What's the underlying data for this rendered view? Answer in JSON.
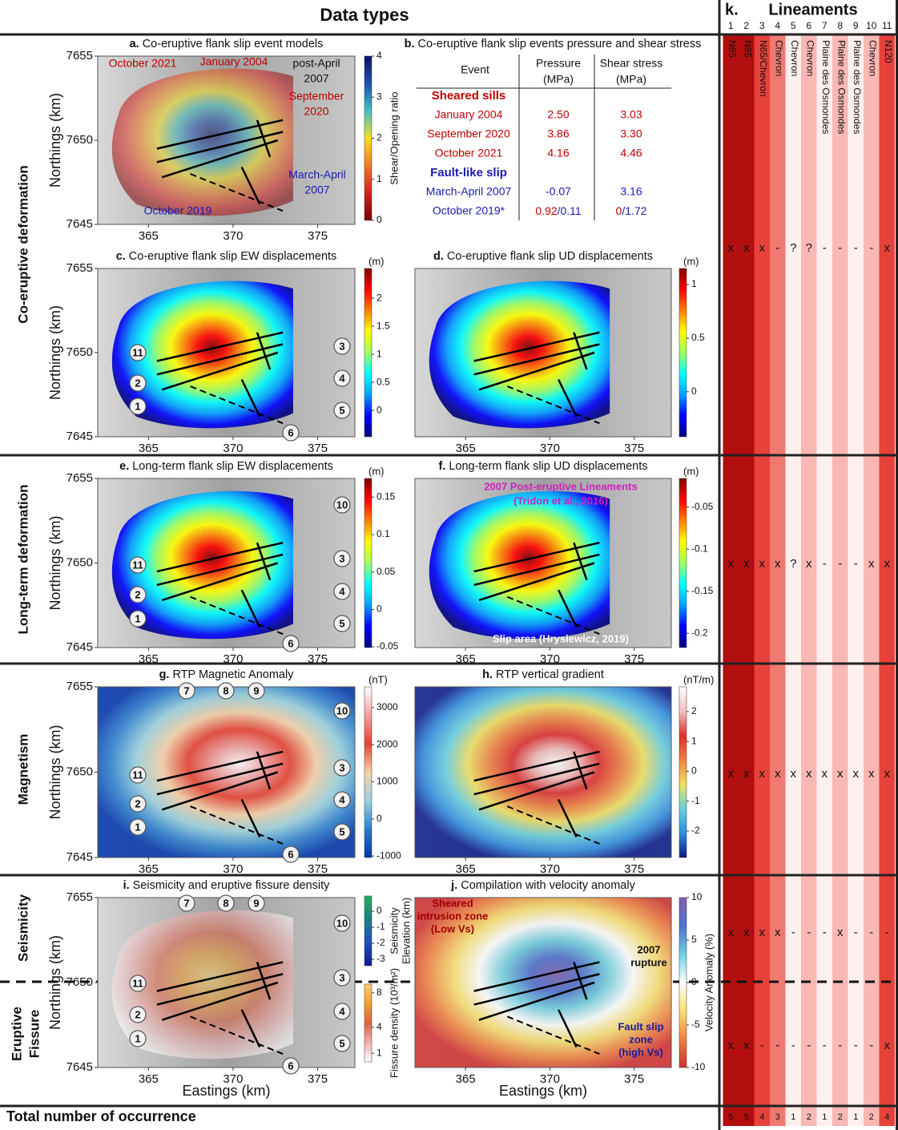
{
  "header": {
    "title": "Data types"
  },
  "sections": [
    {
      "lines": [
        "Co-eruptive deformation"
      ]
    },
    {
      "lines": [
        "Long-term deformation"
      ]
    },
    {
      "lines": [
        "Magnetism"
      ]
    },
    {
      "lines": [
        "Seismicity"
      ]
    },
    {
      "lines": [
        "Eruptive",
        "Fissure"
      ]
    }
  ],
  "axes": {
    "xlabel": "Eastings (km)",
    "ylabel": "Northings (km)",
    "xlim": [
      362,
      377.2
    ],
    "ylim": [
      7645,
      7655
    ],
    "xticks": [
      365,
      370,
      375
    ],
    "yticks": [
      7645,
      7650,
      7655
    ]
  },
  "panels": [
    {
      "letter": "a.",
      "title": "Co-eruptive flank slip event models",
      "colorbars": [
        {
          "label": [
            "Shear/Opening ratio"
          ],
          "lim": [
            0,
            4
          ],
          "ticks": [
            0,
            1,
            2,
            3,
            4
          ]
        }
      ],
      "annotations": [
        {
          "lines": [
            "October 2021"
          ],
          "color": "#c00000"
        },
        {
          "lines": [
            "January 2004"
          ],
          "color": "#c00000"
        },
        {
          "lines": [
            "post-April",
            "2007"
          ],
          "color": "#111111"
        },
        {
          "lines": [
            "September",
            "2020"
          ],
          "color": "#c00000"
        },
        {
          "lines": [
            "March-April",
            "2007"
          ],
          "color": "#1a1ab0"
        },
        {
          "lines": [
            "October 2019"
          ],
          "color": "#1a1ab0"
        }
      ]
    },
    {
      "letter": "b.",
      "title": "Co-eruptive flank slip events pressure and shear stress",
      "table": {
        "header": [
          [
            "Event"
          ],
          [
            "Pressure",
            "(MPa)"
          ],
          [
            "Shear stress",
            "(MPa)"
          ]
        ],
        "groups": [
          {
            "name": "Sheared sills",
            "color": "#c00000",
            "rows": [
              [
                "January 2004",
                "2.50",
                "3.03"
              ],
              [
                "September 2020",
                "3.86",
                "3.30"
              ],
              [
                "October 2021",
                "4.16",
                "4.46"
              ]
            ]
          },
          {
            "name": "Fault-like slip",
            "color": "#1a1ab0",
            "rows": [
              [
                "March-April 2007",
                "-0.07",
                "3.16"
              ],
              [
                "October 2019*",
                [
                  "0.92",
                  "/0.11"
                ],
                [
                  "0",
                  "/1.72"
                ]
              ]
            ]
          }
        ]
      }
    },
    {
      "letter": "c.",
      "title": "Co-eruptive flank slip EW displacements",
      "colorbars": [
        {
          "unit": "(m)",
          "lim": [
            -0.47,
            2.53
          ],
          "ticks": [
            0,
            0.5,
            1,
            1.5,
            2
          ]
        }
      ]
    },
    {
      "letter": "d.",
      "title": "Co-eruptive flank slip UD displacements",
      "colorbars": [
        {
          "unit": "(m)",
          "lim": [
            -0.42,
            1.15
          ],
          "ticks": [
            0,
            0.5,
            1
          ]
        }
      ]
    },
    {
      "letter": "e.",
      "title": "Long-term flank slip EW displacements",
      "colorbars": [
        {
          "unit": "(m)",
          "lim": [
            -0.051,
            0.175
          ],
          "ticks": [
            -0.05,
            0,
            0.05,
            0.1,
            0.15
          ]
        }
      ]
    },
    {
      "letter": "f.",
      "title": "Long-term flank slip UD displacements",
      "colorbars": [
        {
          "unit": "(m)",
          "lim": [
            -0.217,
            -0.016
          ],
          "ticks": [
            -0.2,
            -0.15,
            -0.1,
            -0.05
          ]
        }
      ],
      "annotations": [
        {
          "lines": [
            "2007 Post-eruptive Lineaments",
            "(Tridon et al., 2016)"
          ],
          "color": "#d020c0"
        },
        {
          "lines": [
            "Slip area (Hrysiewicz, 2019)"
          ],
          "color": "#ffffff"
        }
      ]
    },
    {
      "letter": "g.",
      "title": "RTP Magnetic Anomaly",
      "colorbars": [
        {
          "unit": "(nT)",
          "lim": [
            -1040,
            3560
          ],
          "ticks": [
            -1000,
            0,
            1000,
            2000,
            3000
          ]
        }
      ]
    },
    {
      "letter": "h.",
      "title": "RTP vertical gradient",
      "colorbars": [
        {
          "unit": "(nT/m)",
          "lim": [
            -2.89,
            2.83
          ],
          "ticks": [
            -2,
            -1,
            0,
            1,
            2
          ]
        }
      ]
    },
    {
      "letter": "i.",
      "title": "Seismicity and eruptive fissure density",
      "colorbars": [
        {
          "label": [
            "Seismicity",
            "Elevation (km)"
          ],
          "lim": [
            -3.4,
            0.95
          ],
          "ticks": [
            -3,
            -2,
            -1,
            0
          ]
        },
        {
          "label": [
            "Fissure density (10³/m²)"
          ],
          "lim": [
            0,
            9
          ],
          "ticks": [
            1,
            4,
            8
          ]
        }
      ]
    },
    {
      "letter": "j.",
      "title": "Compilation with velocity anomaly",
      "colorbars": [
        {
          "label": [
            "Velocity Anomaly (%)"
          ],
          "lim": [
            -10,
            10
          ],
          "ticks": [
            -10,
            -5,
            0,
            5,
            10
          ]
        }
      ],
      "annotations": [
        {
          "lines": [
            "Sheared",
            "intrusion zone",
            "(Low Vs)"
          ],
          "color": "#a00000"
        },
        {
          "lines": [
            "2007",
            "rupture"
          ],
          "color": "#111111"
        },
        {
          "lines": [
            "Fault slip",
            "zone",
            "(high Vs)"
          ],
          "color": "#1a1a9a"
        }
      ]
    }
  ],
  "lineaments": {
    "letter": "k.",
    "title": "Lineaments",
    "numbers": [
      1,
      2,
      3,
      4,
      5,
      6,
      7,
      8,
      9,
      10,
      11
    ],
    "names": [
      "N65",
      "N65",
      "N65/Chevron",
      "Chevron",
      "Chevron",
      "Chevron",
      "Plaine des Osmondes",
      "Plaine des Osmondes",
      "Plaine des Osmondes",
      "Chevron",
      "N120"
    ],
    "rows": [
      [
        "x",
        "x",
        "x",
        "-",
        "?",
        "?",
        "-",
        "-",
        "-",
        "-",
        "x"
      ],
      [
        "x",
        "x",
        "x",
        "x",
        "?",
        "x",
        "-",
        "-",
        "-",
        "x",
        "x"
      ],
      [
        "x",
        "x",
        "x",
        "x",
        "x",
        "x",
        "x",
        "x",
        "x",
        "x",
        "x"
      ],
      [
        "x",
        "x",
        "x",
        "x",
        "-",
        "-",
        "-",
        "x",
        "-",
        "-",
        "-"
      ],
      [
        "x",
        "x",
        "-",
        "-",
        "-",
        "-",
        "-",
        "-",
        "-",
        "-",
        "x"
      ]
    ],
    "total_label": "Total number of occurrence",
    "totals": [
      "5",
      "5",
      "4",
      "3",
      "1",
      "2",
      "1",
      "2",
      "1",
      "2",
      "4"
    ]
  }
}
